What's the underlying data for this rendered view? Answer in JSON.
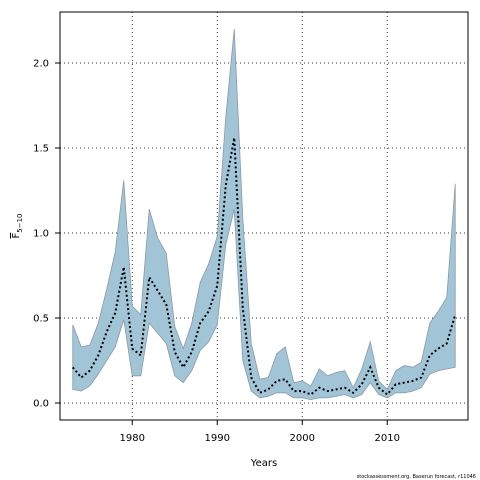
{
  "chart_data": {
    "type": "area",
    "xlabel": "Years",
    "ylabel": "F",
    "ylabel_subscript": "5−10",
    "xlim": [
      1971.5,
      2019.5
    ],
    "ylim": [
      -0.1,
      2.3
    ],
    "xticks": [
      1980,
      1990,
      2000,
      2010
    ],
    "yticks": [
      0.0,
      0.5,
      1.0,
      1.5,
      2.0
    ],
    "grid": true,
    "colors": {
      "band": "#a1c4d7",
      "band_edge": "#8a9aa6",
      "line": "#000000",
      "grid": "#333333"
    },
    "x": [
      1973,
      1974,
      1975,
      1976,
      1977,
      1978,
      1979,
      1980,
      1981,
      1982,
      1983,
      1984,
      1985,
      1986,
      1987,
      1988,
      1989,
      1990,
      1991,
      1992,
      1993,
      1994,
      1995,
      1996,
      1997,
      1998,
      1999,
      2000,
      2001,
      2002,
      2003,
      2004,
      2005,
      2006,
      2007,
      2008,
      2009,
      2010,
      2011,
      2012,
      2013,
      2014,
      2015,
      2016,
      2017,
      2018
    ],
    "series": [
      {
        "role": "upper",
        "values": [
          0.46,
          0.33,
          0.34,
          0.47,
          0.67,
          0.89,
          1.31,
          0.57,
          0.52,
          1.14,
          0.97,
          0.88,
          0.45,
          0.32,
          0.47,
          0.71,
          0.82,
          0.98,
          1.68,
          2.2,
          1.09,
          0.35,
          0.14,
          0.15,
          0.29,
          0.33,
          0.12,
          0.13,
          0.1,
          0.2,
          0.16,
          0.18,
          0.19,
          0.09,
          0.2,
          0.36,
          0.13,
          0.08,
          0.19,
          0.22,
          0.21,
          0.24,
          0.47,
          0.54,
          0.62,
          1.29
        ]
      },
      {
        "role": "estimate",
        "values": [
          0.21,
          0.15,
          0.19,
          0.28,
          0.42,
          0.53,
          0.8,
          0.32,
          0.28,
          0.74,
          0.66,
          0.58,
          0.3,
          0.21,
          0.3,
          0.47,
          0.54,
          0.69,
          1.28,
          1.56,
          0.56,
          0.15,
          0.06,
          0.08,
          0.13,
          0.14,
          0.07,
          0.07,
          0.05,
          0.09,
          0.07,
          0.08,
          0.09,
          0.06,
          0.11,
          0.21,
          0.09,
          0.05,
          0.11,
          0.12,
          0.13,
          0.15,
          0.28,
          0.32,
          0.35,
          0.52
        ]
      },
      {
        "role": "lower",
        "values": [
          0.08,
          0.07,
          0.1,
          0.17,
          0.25,
          0.33,
          0.49,
          0.16,
          0.16,
          0.47,
          0.41,
          0.35,
          0.16,
          0.12,
          0.19,
          0.31,
          0.36,
          0.46,
          0.93,
          1.14,
          0.25,
          0.07,
          0.03,
          0.04,
          0.06,
          0.06,
          0.03,
          0.03,
          0.02,
          0.03,
          0.03,
          0.04,
          0.05,
          0.03,
          0.05,
          0.12,
          0.05,
          0.03,
          0.06,
          0.06,
          0.07,
          0.09,
          0.17,
          0.19,
          0.2,
          0.21
        ]
      }
    ]
  },
  "footer": "stockassessment.org, Baserun forecast, r11046"
}
